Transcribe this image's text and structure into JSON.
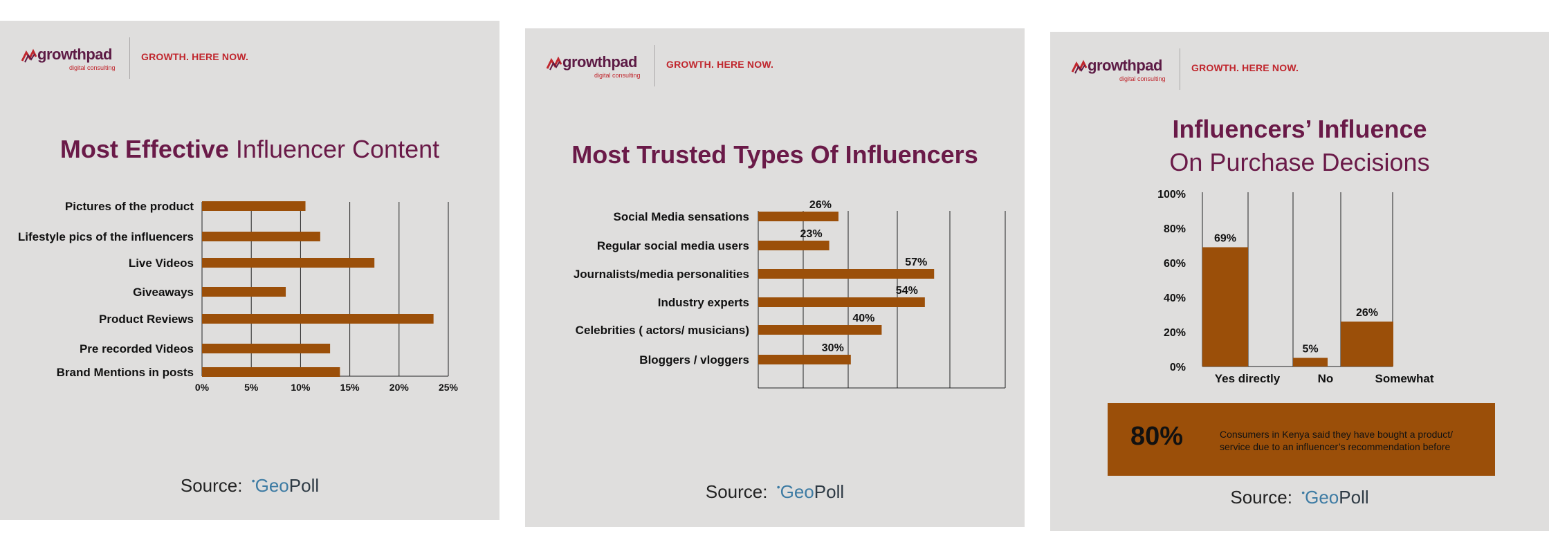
{
  "brand": {
    "name": "growthpad",
    "sub": "digital consulting",
    "tagline": "GROWTH. HERE NOW.",
    "primary_color": "#6a1a48",
    "accent_color": "#c0262d",
    "bar_color": "#9b4f09",
    "panel_color": "#dfdedd"
  },
  "source": {
    "label": "Source:",
    "brand_a": "Geo",
    "brand_b": "Poll"
  },
  "panel1": {
    "title_bold": "Most Effective",
    "title_light": " Influencer Content"
  },
  "panel2": {
    "title_bold": "Most Trusted Types Of Influencers"
  },
  "panel3": {
    "title_line1": "Influencers’ Influence",
    "title_line2": "On Purchase Decisions",
    "callout_value": "80%",
    "callout_text": "Consumers in Kenya said they have bought a product/ service due to an influencer’s recommendation before"
  },
  "chart_data": [
    {
      "type": "bar",
      "orientation": "horizontal",
      "title": "Most Effective Influencer Content",
      "categories": [
        "Pictures of the product",
        "Lifestyle pics of the influencers",
        "Live Videos",
        "Giveaways",
        "Product Reviews",
        "Pre recorded Videos",
        "Brand Mentions in posts"
      ],
      "values": [
        10.5,
        12,
        17.5,
        8.5,
        23.5,
        13,
        14
      ],
      "x_ticks": [
        "0%",
        "5%",
        "10%",
        "15%",
        "20%",
        "25%"
      ],
      "xlim": [
        0,
        25
      ],
      "grid": true
    },
    {
      "type": "bar",
      "orientation": "horizontal",
      "title": "Most Trusted Types Of Influencers",
      "categories": [
        "Social Media sensations",
        "Regular social media users",
        "Journalists/media personalities",
        "Industry experts",
        "Celebrities ( actors/ musicians)",
        "Bloggers / vloggers"
      ],
      "values": [
        26,
        23,
        57,
        54,
        40,
        30
      ],
      "labels": [
        "26%",
        "23%",
        "57%",
        "54%",
        "40%",
        "30%"
      ],
      "grid": true
    },
    {
      "type": "bar",
      "orientation": "vertical",
      "title": "Influencers’ Influence On Purchase Decisions",
      "categories": [
        "Yes directly",
        "No",
        "Somewhat"
      ],
      "values": [
        69,
        5,
        26
      ],
      "labels": [
        "69%",
        "5%",
        "26%"
      ],
      "y_ticks": [
        "100%",
        "80%",
        "60%",
        "40%",
        "20%",
        "0%"
      ],
      "ylim": [
        0,
        100
      ],
      "grid": true
    }
  ]
}
